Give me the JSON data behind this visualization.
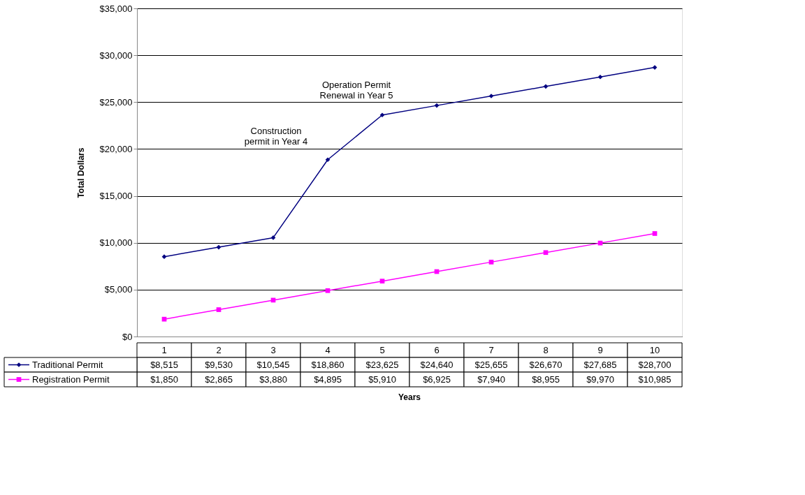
{
  "chart_data": {
    "type": "line",
    "xlabel": "Years",
    "ylabel": "Total Dollars",
    "categories": [
      "1",
      "2",
      "3",
      "4",
      "5",
      "6",
      "7",
      "8",
      "9",
      "10"
    ],
    "series": [
      {
        "name": "Traditional Permit",
        "color": "#000080",
        "marker": "diamond",
        "values": [
          8515,
          9530,
          10545,
          18860,
          23625,
          24640,
          25655,
          26670,
          27685,
          28700
        ],
        "value_labels": [
          "$8,515",
          "$9,530",
          "$10,545",
          "$18,860",
          "$23,625",
          "$24,640",
          "$25,655",
          "$26,670",
          "$27,685",
          "$28,700"
        ]
      },
      {
        "name": "Registration Permit",
        "color": "#ff00ff",
        "marker": "square",
        "values": [
          1850,
          2865,
          3880,
          4895,
          5910,
          6925,
          7940,
          8955,
          9970,
          10985
        ],
        "value_labels": [
          "$1,850",
          "$2,865",
          "$3,880",
          "$4,895",
          "$5,910",
          "$6,925",
          "$7,940",
          "$8,955",
          "$9,970",
          "$10,985"
        ]
      }
    ],
    "ylim": [
      0,
      35000
    ],
    "yticks": [
      {
        "value": 0,
        "label": "$0"
      },
      {
        "value": 5000,
        "label": "$5,000"
      },
      {
        "value": 10000,
        "label": "$10,000"
      },
      {
        "value": 15000,
        "label": "$15,000"
      },
      {
        "value": 20000,
        "label": "$20,000"
      },
      {
        "value": 25000,
        "label": "$25,000"
      },
      {
        "value": 30000,
        "label": "$30,000"
      },
      {
        "value": 35000,
        "label": "$35,000"
      }
    ],
    "grid": "y",
    "legend": "bottom",
    "tick_labels": "y",
    "line_style": "solid",
    "annotations": [
      {
        "text": "Construction\npermit in Year 4",
        "x": "4",
        "y": 18860
      },
      {
        "text": "Operation Permit\nRenewal in Year 5",
        "x": "5",
        "y": 23625
      }
    ]
  }
}
